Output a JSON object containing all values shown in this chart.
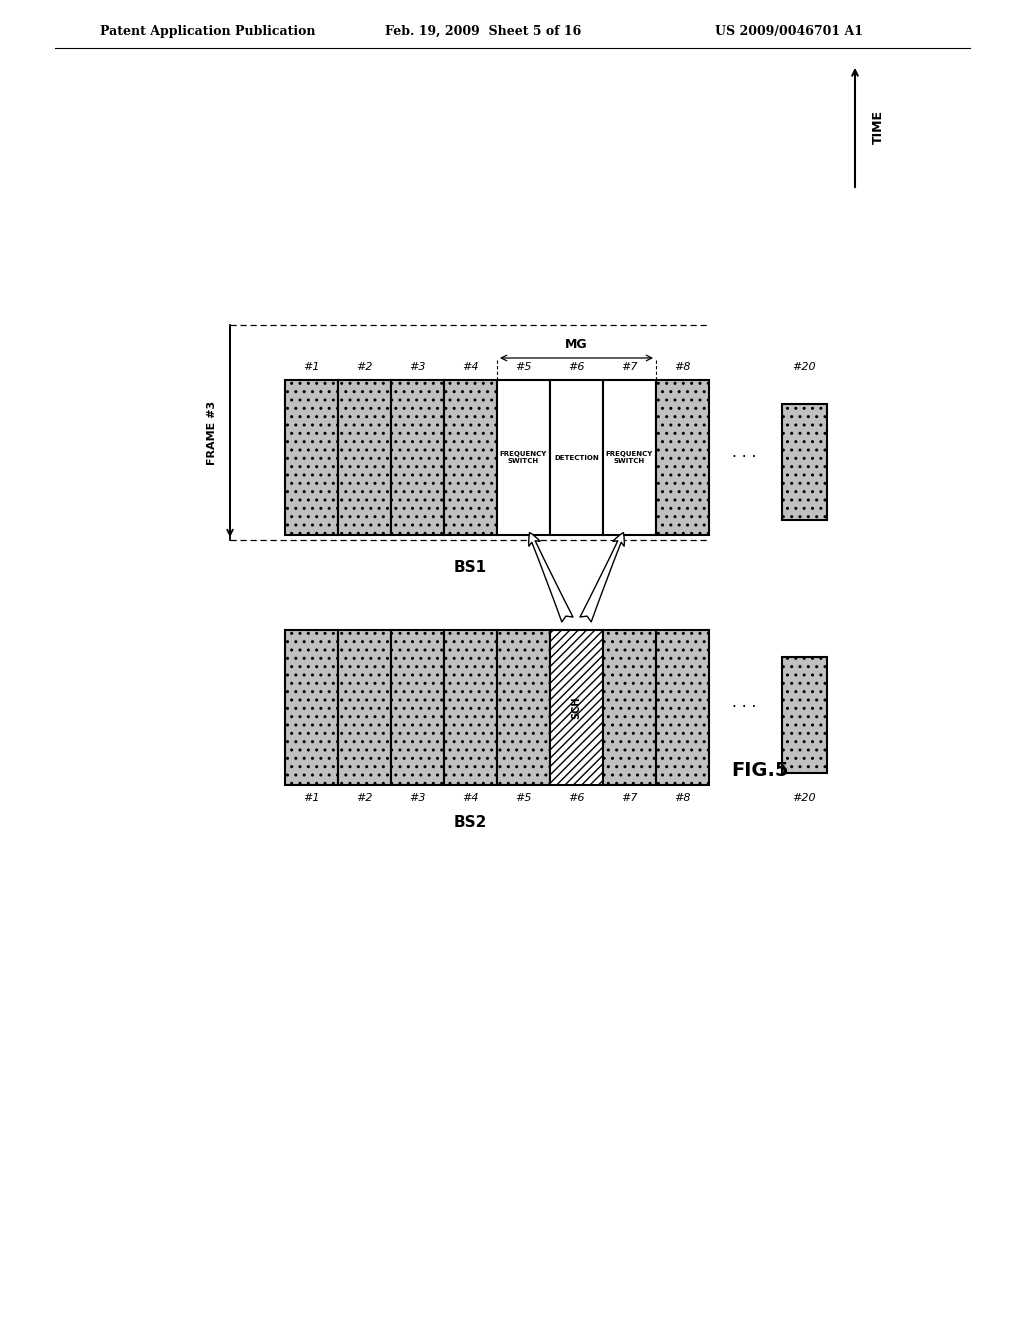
{
  "header_left": "Patent Application Publication",
  "header_center": "Feb. 19, 2009  Sheet 5 of 16",
  "header_right": "US 2009/0046701 A1",
  "fig_label": "FIG.5",
  "bs1_label": "BS1",
  "bs2_label": "BS2",
  "frame_label": "FRAME #3",
  "mg_label": "MG",
  "time_label": "TIME",
  "slot_labels_8": [
    "#1",
    "#2",
    "#3",
    "#4",
    "#5",
    "#6",
    "#7",
    "#8"
  ],
  "slot_label_20": "#20",
  "bs1_text_5": "FREQUENCY\nSWITCH",
  "bs1_text_6": "DETECTION",
  "bs1_text_7": "FREQUENCY\nSWITCH",
  "bs2_sch_text": "SCH",
  "dot_fill_color": "#c0c0c0",
  "bg_color": "#ffffff",
  "page_width": 10.24,
  "page_height": 13.2
}
